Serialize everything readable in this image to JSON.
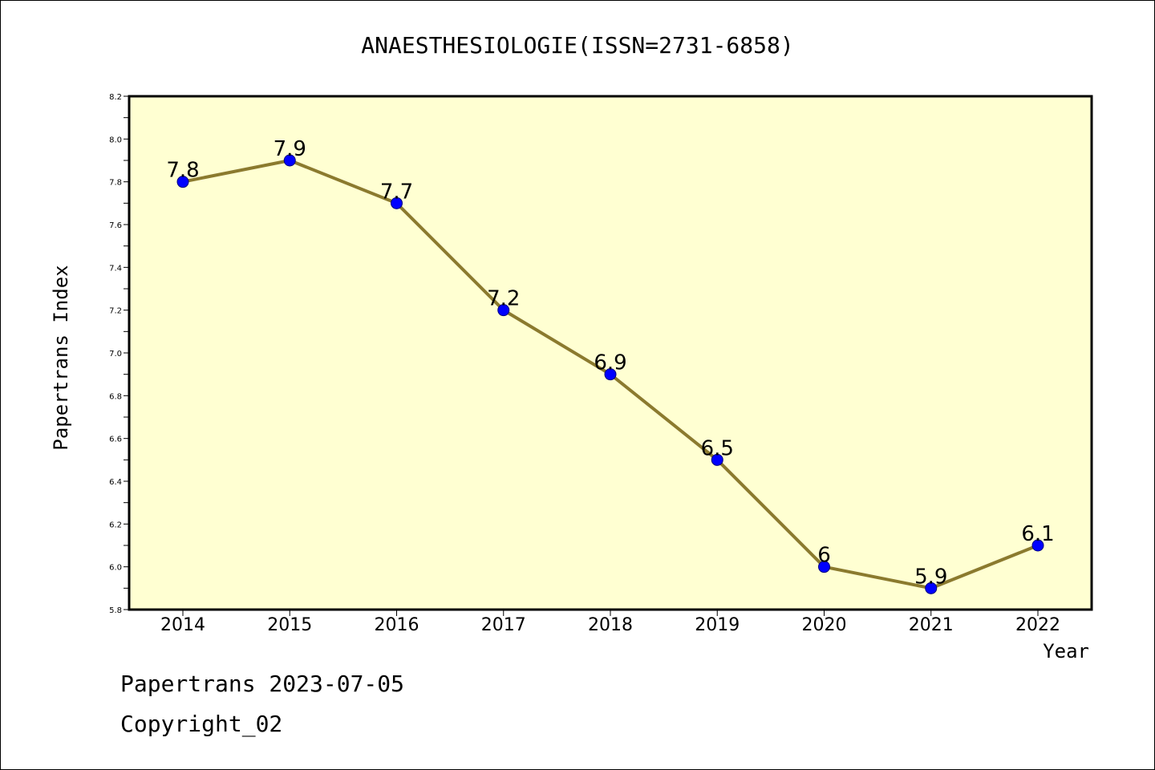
{
  "chart_data": {
    "type": "line",
    "title": "ANAESTHESIOLOGIE(ISSN=2731-6858)",
    "xlabel": "Year",
    "ylabel": "Papertrans Index",
    "categories": [
      "2014",
      "2015",
      "2016",
      "2017",
      "2018",
      "2019",
      "2020",
      "2021",
      "2022"
    ],
    "series": [
      {
        "values": [
          7.8,
          7.9,
          7.7,
          7.2,
          6.9,
          6.5,
          6.0,
          5.9,
          6.1
        ],
        "labels": [
          "7.8",
          "7.9",
          "7.7",
          "7.2",
          "6.9",
          "6.5",
          "6",
          "5.9",
          "6.1"
        ]
      }
    ],
    "ylim": [
      5.8,
      8.2
    ],
    "yticks": [
      "5.8",
      "6.0",
      "6.2",
      "6.4",
      "6.6",
      "6.8",
      "7.0",
      "7.2",
      "7.4",
      "7.6",
      "7.8",
      "8.0",
      "8.2"
    ],
    "grid": false,
    "legend": "none",
    "colors": {
      "plot_background": "#ffffd2",
      "line": "#8b7a2e",
      "marker_fill": "#0000ff",
      "marker_edge": "#000080"
    }
  },
  "footer": {
    "line1": "Papertrans 2023-07-05",
    "line2": "Copyright_02"
  }
}
